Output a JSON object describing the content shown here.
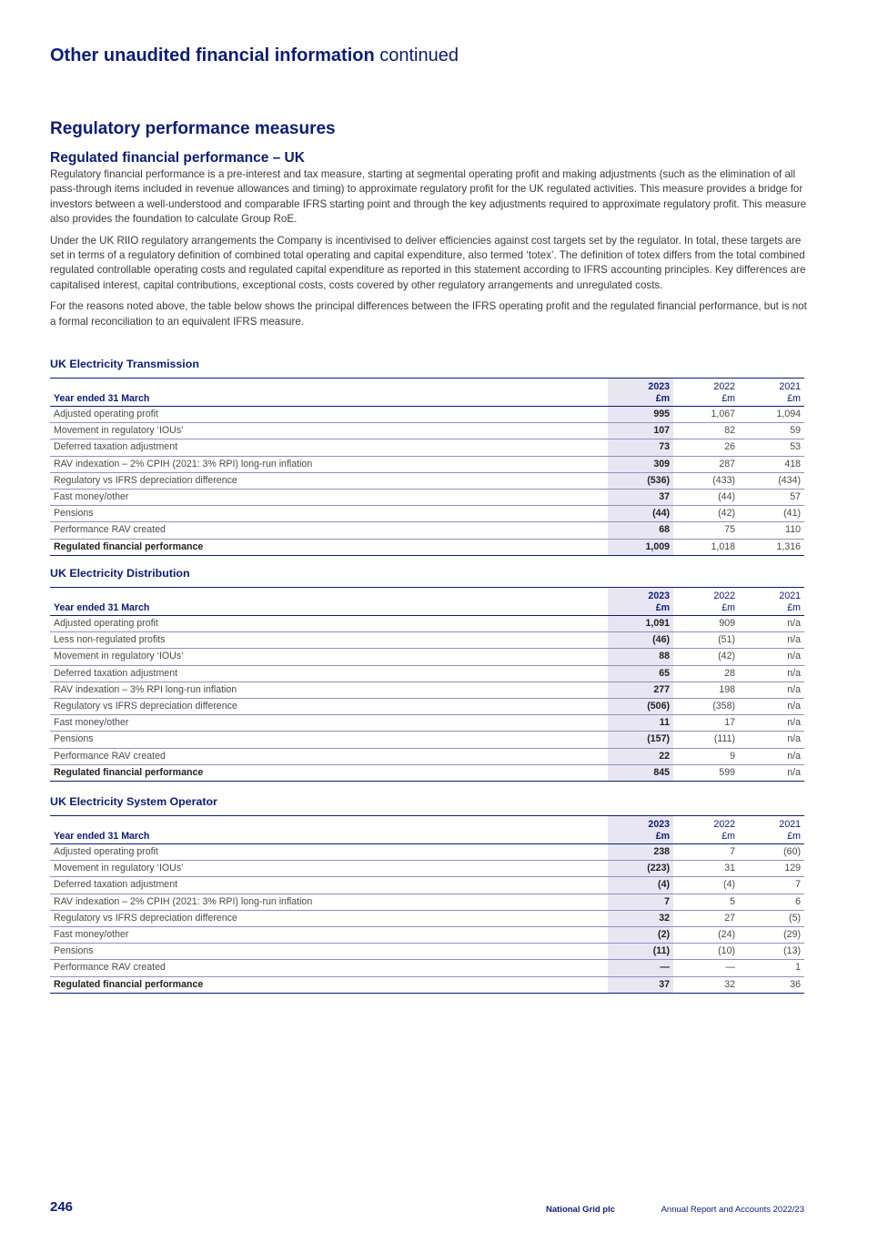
{
  "header": {
    "title": "Other unaudited financial information",
    "title_suffix": "continued"
  },
  "section_title": "Regulatory performance measures",
  "sub_title": "Regulated financial performance – UK",
  "paragraphs": [
    "Regulatory financial performance is a pre-interest and tax measure, starting at segmental operating profit and making adjustments (such as the elimination of all pass-through items included in revenue allowances and timing) to approximate regulatory profit for the UK regulated activities. This measure provides a bridge for investors between a well-understood and comparable IFRS starting point and through the key adjustments required to approximate regulatory profit. This measure also provides the foundation to calculate Group RoE.",
    "Under the UK RIIO regulatory arrangements the Company is incentivised to deliver efficiencies against cost targets set by the regulator. In total, these targets are set in terms of a regulatory definition of combined total operating and capital expenditure, also termed ‘totex’. The definition of totex differs from the total combined regulated controllable operating costs and regulated capital expenditure as reported in this statement according to IFRS accounting principles. Key differences are capitalised interest, capital contributions, exceptional costs, costs covered by other regulatory arrangements and unregulated costs.",
    "For the reasons noted above, the table below shows the principal differences between the IFRS operating profit and the regulated financial performance, but is not a formal reconciliation to an equivalent IFRS measure."
  ],
  "tables": [
    {
      "title": "UK Electricity Transmission",
      "row_header": "Year ended 31 March",
      "years": [
        "2023",
        "2022",
        "2021"
      ],
      "unit": "£m",
      "rows": [
        {
          "label": "Adjusted operating profit",
          "v": [
            "995",
            "1,067",
            "1,094"
          ]
        },
        {
          "label": "Movement in regulatory ‘IOUs’",
          "v": [
            "107",
            "82",
            "59"
          ]
        },
        {
          "label": "Deferred taxation adjustment",
          "v": [
            "73",
            "26",
            "53"
          ]
        },
        {
          "label": "RAV indexation – 2% CPIH (2021: 3% RPI) long-run inflation",
          "v": [
            "309",
            "287",
            "418"
          ]
        },
        {
          "label": "Regulatory vs IFRS depreciation difference",
          "v": [
            "(536)",
            "(433)",
            "(434)"
          ]
        },
        {
          "label": "Fast money/other",
          "v": [
            "37",
            "(44)",
            "57"
          ]
        },
        {
          "label": "Pensions",
          "v": [
            "(44)",
            "(42)",
            "(41)"
          ]
        },
        {
          "label": "Performance RAV created",
          "v": [
            "68",
            "75",
            "110"
          ]
        }
      ],
      "total": {
        "label": "Regulated financial performance",
        "v": [
          "1,009",
          "1,018",
          "1,316"
        ]
      }
    },
    {
      "title": "UK Electricity Distribution",
      "row_header": "Year ended 31 March",
      "years": [
        "2023",
        "2022",
        "2021"
      ],
      "unit": "£m",
      "rows": [
        {
          "label": "Adjusted operating profit",
          "v": [
            "1,091",
            "909",
            "n/a"
          ]
        },
        {
          "label": "Less non-regulated profits",
          "v": [
            "(46)",
            "(51)",
            "n/a"
          ]
        },
        {
          "label": "Movement in regulatory ‘IOUs’",
          "v": [
            "88",
            "(42)",
            "n/a"
          ]
        },
        {
          "label": "Deferred taxation adjustment",
          "v": [
            "65",
            "28",
            "n/a"
          ]
        },
        {
          "label": "RAV indexation – 3% RPI long-run inflation",
          "v": [
            "277",
            "198",
            "n/a"
          ]
        },
        {
          "label": "Regulatory vs IFRS depreciation difference",
          "v": [
            "(506)",
            "(358)",
            "n/a"
          ]
        },
        {
          "label": "Fast money/other",
          "v": [
            "11",
            "17",
            "n/a"
          ]
        },
        {
          "label": "Pensions",
          "v": [
            "(157)",
            "(111)",
            "n/a"
          ]
        },
        {
          "label": "Performance RAV created",
          "v": [
            "22",
            "9",
            "n/a"
          ]
        }
      ],
      "total": {
        "label": "Regulated financial performance",
        "v": [
          "845",
          "599",
          "n/a"
        ]
      }
    },
    {
      "title": "UK Electricity System Operator",
      "row_header": "Year ended 31 March",
      "years": [
        "2023",
        "2022",
        "2021"
      ],
      "unit": "£m",
      "rows": [
        {
          "label": "Adjusted operating profit",
          "v": [
            "238",
            "7",
            "(60)"
          ]
        },
        {
          "label": "Movement in regulatory ‘IOUs’",
          "v": [
            "(223)",
            "31",
            "129"
          ]
        },
        {
          "label": "Deferred taxation adjustment",
          "v": [
            "(4)",
            "(4)",
            "7"
          ]
        },
        {
          "label": "RAV indexation – 2% CPIH (2021: 3% RPI) long-run inflation",
          "v": [
            "7",
            "5",
            "6"
          ]
        },
        {
          "label": "Regulatory vs IFRS depreciation difference",
          "v": [
            "32",
            "27",
            "(5)"
          ]
        },
        {
          "label": "Fast money/other",
          "v": [
            "(2)",
            "(24)",
            "(29)"
          ]
        },
        {
          "label": "Pensions",
          "v": [
            "(11)",
            "(10)",
            "(13)"
          ]
        },
        {
          "label": "Performance RAV created",
          "v": [
            "—",
            "—",
            "1"
          ]
        }
      ],
      "total": {
        "label": "Regulated financial performance",
        "v": [
          "37",
          "32",
          "36"
        ]
      }
    }
  ],
  "footer": {
    "page_number": "246",
    "company": "National Grid plc",
    "report": "Annual Report and Accounts 2022/23"
  },
  "colors": {
    "navy": "#0d1c73",
    "highlight_column": "#e9e6f3"
  }
}
